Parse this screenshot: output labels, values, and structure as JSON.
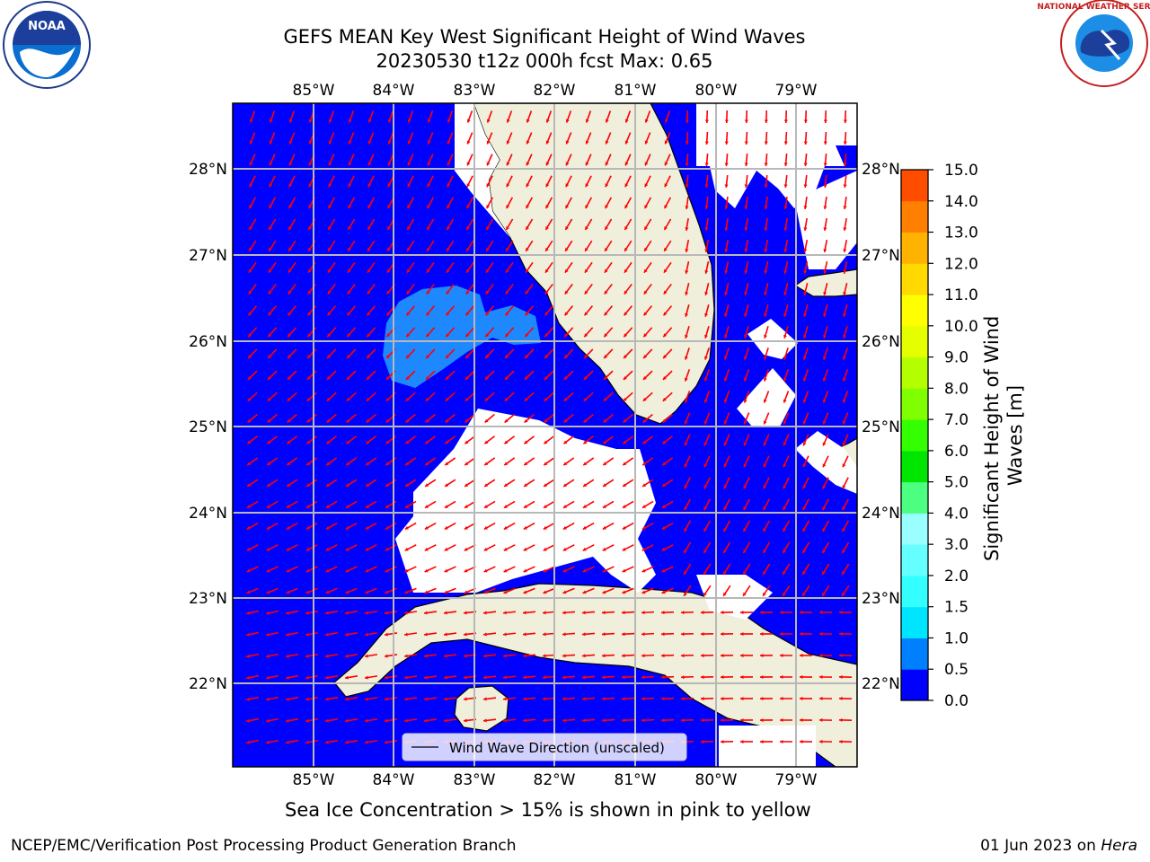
{
  "title_line1": "GEFS MEAN Key West Significant Height of Wind Waves",
  "title_line2": "20230530 t12z 000h fcst   Max: 0.65",
  "logo_left_text": "NOAA",
  "logo_right_text": "NATIONAL WEATHER SERVICE",
  "lon_labels": [
    "85°W",
    "84°W",
    "83°W",
    "82°W",
    "81°W",
    "80°W",
    "79°W"
  ],
  "lat_labels": [
    "28°N",
    "27°N",
    "26°N",
    "25°N",
    "24°N",
    "23°N",
    "22°N"
  ],
  "legend_label": "Wind Wave Direction (unscaled)",
  "colorbar": {
    "label": "Significant Height of Wind Waves [m]",
    "ticks": [
      "0.0",
      "0.5",
      "1.0",
      "1.5",
      "2.0",
      "3.0",
      "4.0",
      "5.0",
      "6.0",
      "7.0",
      "8.0",
      "9.0",
      "10.0",
      "11.0",
      "12.0",
      "13.0",
      "14.0",
      "15.0"
    ],
    "colors": [
      "#0000ff",
      "#0080ff",
      "#00e5ff",
      "#33ffff",
      "#66ffff",
      "#99ffff",
      "#4dff80",
      "#00e600",
      "#33ff00",
      "#80ff00",
      "#b3ff00",
      "#e6ff00",
      "#ffff00",
      "#ffd900",
      "#ffb300",
      "#ff8000",
      "#ff4d00",
      "#ff0000"
    ]
  },
  "caption": "Sea Ice Concentration > 15% is shown in pink to yellow",
  "footer_left": "NCEP/EMC/Verification Post Processing Product Generation Branch",
  "footer_right_date": "01 Jun 2023 on ",
  "footer_right_host": "Hera",
  "colors": {
    "ocean": "#0000ff",
    "wave_patch": "#1e88ff",
    "land": "#efefdc",
    "arrow": "#ff0000",
    "grid": "#b8b8b8"
  }
}
